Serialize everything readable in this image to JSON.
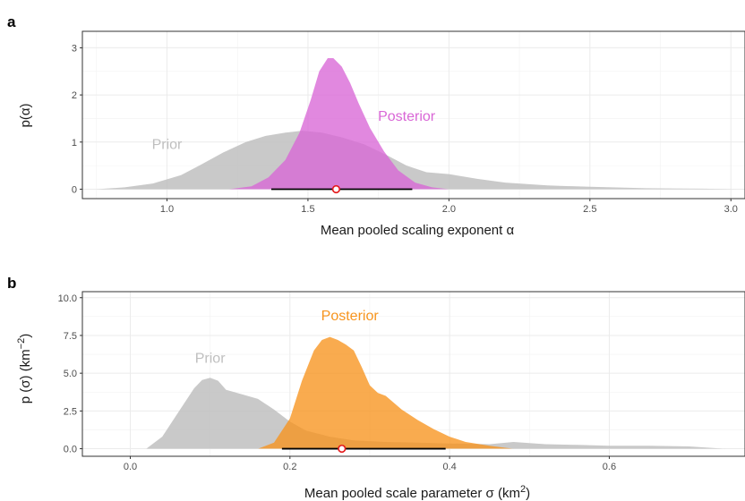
{
  "chart_data": [
    {
      "panel_label": "a",
      "type": "area",
      "xlabel": "Mean pooled scaling exponent α",
      "ylabel": "p(α)",
      "xlim": [
        0.7,
        3.05
      ],
      "ylim": [
        -0.2,
        3.35
      ],
      "x_ticks": [
        "1.0",
        "1.5",
        "2.0",
        "2.5",
        "3.0"
      ],
      "x_tick_values": [
        1.0,
        1.5,
        2.0,
        2.5,
        3.0
      ],
      "y_ticks": [
        "0",
        "1",
        "2",
        "3"
      ],
      "y_tick_values": [
        0,
        1,
        2,
        3
      ],
      "grid": true,
      "series": [
        {
          "name": "Prior",
          "color": "#bfbfbf",
          "label_pos": [
            1.0,
            0.85
          ],
          "x": [
            0.75,
            0.85,
            0.95,
            1.05,
            1.12,
            1.2,
            1.28,
            1.35,
            1.42,
            1.48,
            1.55,
            1.62,
            1.7,
            1.78,
            1.85,
            1.92,
            2.0,
            2.1,
            2.2,
            2.35,
            2.5,
            2.7,
            2.9,
            3.02
          ],
          "y": [
            0.0,
            0.04,
            0.12,
            0.3,
            0.52,
            0.78,
            1.0,
            1.13,
            1.2,
            1.24,
            1.2,
            1.1,
            0.95,
            0.72,
            0.5,
            0.36,
            0.32,
            0.22,
            0.14,
            0.08,
            0.05,
            0.02,
            0.01,
            0.0
          ]
        },
        {
          "name": "Posterior",
          "color": "#d966d6",
          "label_pos": [
            1.85,
            1.45
          ],
          "x": [
            1.22,
            1.3,
            1.36,
            1.42,
            1.47,
            1.51,
            1.54,
            1.57,
            1.59,
            1.62,
            1.65,
            1.68,
            1.72,
            1.77,
            1.82,
            1.88,
            1.94,
            2.0
          ],
          "y": [
            0.0,
            0.06,
            0.25,
            0.62,
            1.2,
            1.9,
            2.5,
            2.78,
            2.78,
            2.6,
            2.25,
            1.82,
            1.3,
            0.8,
            0.4,
            0.14,
            0.04,
            0.0
          ]
        }
      ],
      "point_estimate": 1.6,
      "interval": [
        1.37,
        1.87
      ]
    },
    {
      "panel_label": "b",
      "type": "area",
      "xlabel": "Mean pooled scale parameter σ (km",
      "xlabel_sup": "2",
      "xlabel_end": ")",
      "ylabel": "p (σ) (km",
      "ylabel_sup": "−2",
      "ylabel_end": ")",
      "xlim": [
        -0.06,
        0.77
      ],
      "ylim": [
        -0.5,
        10.4
      ],
      "x_ticks": [
        "0.0",
        "0.2",
        "0.4",
        "0.6"
      ],
      "x_tick_values": [
        0.0,
        0.2,
        0.4,
        0.6
      ],
      "y_ticks": [
        "0.0",
        "2.5",
        "5.0",
        "7.5",
        "10.0"
      ],
      "y_tick_values": [
        0.0,
        2.5,
        5.0,
        7.5,
        10.0
      ],
      "grid": true,
      "series": [
        {
          "name": "Prior",
          "color": "#bfbfbf",
          "label_pos": [
            0.1,
            5.7
          ],
          "x": [
            0.02,
            0.04,
            0.06,
            0.08,
            0.09,
            0.1,
            0.11,
            0.12,
            0.14,
            0.16,
            0.18,
            0.2,
            0.22,
            0.25,
            0.28,
            0.32,
            0.36,
            0.4,
            0.45,
            0.48,
            0.52,
            0.56,
            0.6,
            0.65,
            0.7,
            0.745
          ],
          "y": [
            0.0,
            0.8,
            2.4,
            4.0,
            4.55,
            4.7,
            4.5,
            3.9,
            3.6,
            3.3,
            2.6,
            1.8,
            1.2,
            0.8,
            0.55,
            0.45,
            0.4,
            0.35,
            0.3,
            0.45,
            0.3,
            0.25,
            0.2,
            0.2,
            0.15,
            0.0
          ]
        },
        {
          "name": "Posterior",
          "color": "#f7941d",
          "label_pos": [
            0.275,
            8.5
          ],
          "x": [
            0.16,
            0.18,
            0.2,
            0.215,
            0.23,
            0.24,
            0.25,
            0.26,
            0.27,
            0.28,
            0.29,
            0.3,
            0.31,
            0.32,
            0.34,
            0.36,
            0.38,
            0.4,
            0.42,
            0.45,
            0.48
          ],
          "y": [
            0.0,
            0.4,
            2.0,
            4.5,
            6.5,
            7.2,
            7.4,
            7.2,
            6.9,
            6.5,
            5.4,
            4.2,
            3.7,
            3.5,
            2.6,
            1.9,
            1.3,
            0.8,
            0.45,
            0.2,
            0.0
          ]
        }
      ],
      "point_estimate": 0.265,
      "interval": [
        0.19,
        0.395
      ]
    }
  ]
}
